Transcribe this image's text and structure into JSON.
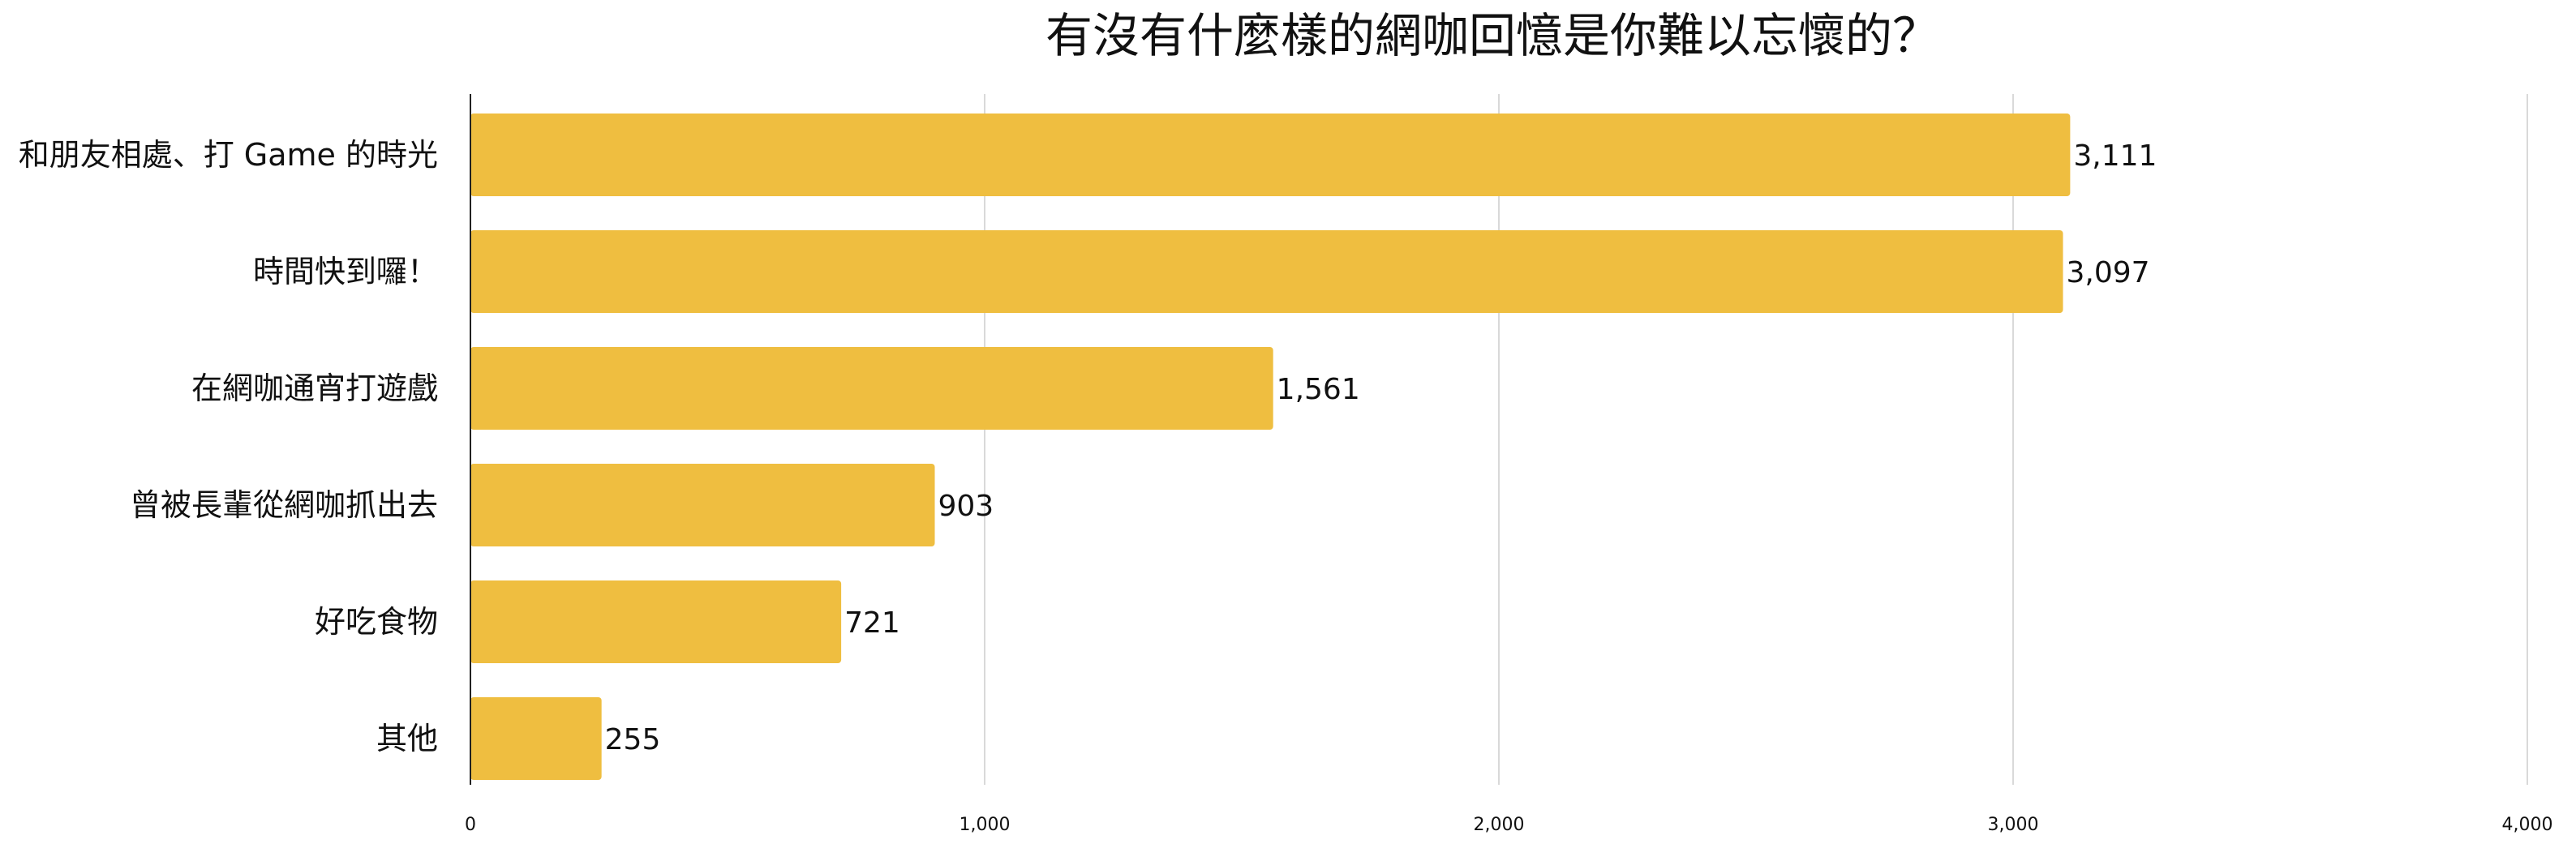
{
  "chart_data": {
    "type": "bar",
    "orientation": "horizontal",
    "title": "有沒有什麼樣的網咖回憶是你難以忘懷的？",
    "categories": [
      "和朋友相處、打 Game 的時光",
      "時間快到囉！",
      "在網咖通宵打遊戲",
      "曾被長輩從網咖抓出去",
      "好吃食物",
      "其他"
    ],
    "values": [
      3111,
      3097,
      1561,
      903,
      721,
      255
    ],
    "value_labels": [
      "3,111",
      "3,097",
      "1,561",
      "903",
      "721",
      "255"
    ],
    "xlim": [
      0,
      4000
    ],
    "x_ticks": [
      0,
      1000,
      2000,
      3000,
      4000
    ],
    "x_tick_labels": [
      "0",
      "1,000",
      "2,000",
      "3,000",
      "4,000"
    ],
    "grid": true,
    "legend": "none",
    "colors": {
      "bar": "#EFBE40",
      "axis": "#222222",
      "grid": "#D9D9D9",
      "text": "#111111"
    }
  }
}
